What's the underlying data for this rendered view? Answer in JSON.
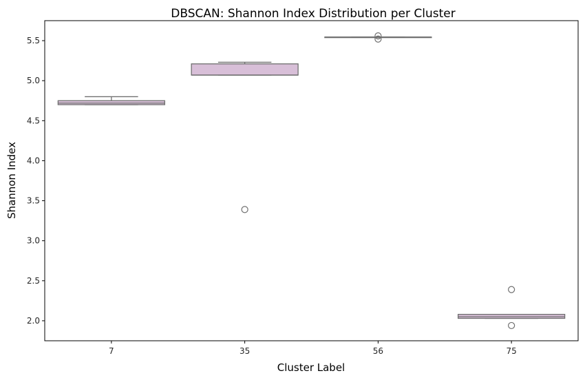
{
  "chart_data": {
    "type": "box",
    "title": "DBSCAN: Shannon Index Distribution per Cluster",
    "xlabel": "Cluster Label",
    "ylabel": "Shannon Index",
    "categories": [
      "7",
      "35",
      "56",
      "75"
    ],
    "ylim": [
      1.75,
      5.75
    ],
    "yticks": [
      2.0,
      2.5,
      3.0,
      3.5,
      4.0,
      4.5,
      5.0,
      5.5
    ],
    "ytick_labels": [
      "2.0",
      "2.5",
      "3.0",
      "3.5",
      "4.0",
      "4.5",
      "5.0",
      "5.5"
    ],
    "grid": false,
    "box_color": "#d8bfd8",
    "edge_color": "#6f6f6f",
    "boxes": [
      {
        "category": "7",
        "whisker_low": 4.7,
        "q1": 4.7,
        "median": 4.72,
        "q3": 4.75,
        "whisker_high": 4.8,
        "outliers": []
      },
      {
        "category": "35",
        "whisker_low": 5.07,
        "q1": 5.07,
        "median": 5.07,
        "q3": 5.21,
        "whisker_high": 5.23,
        "outliers": [
          3.39
        ]
      },
      {
        "category": "56",
        "whisker_low": 5.545,
        "q1": 5.545,
        "median": 5.545,
        "q3": 5.545,
        "whisker_high": 5.545,
        "outliers": [
          5.52,
          5.56
        ]
      },
      {
        "category": "75",
        "whisker_low": 2.03,
        "q1": 2.03,
        "median": 2.05,
        "q3": 2.08,
        "whisker_high": 2.08,
        "outliers": [
          2.39,
          1.94
        ]
      }
    ]
  }
}
